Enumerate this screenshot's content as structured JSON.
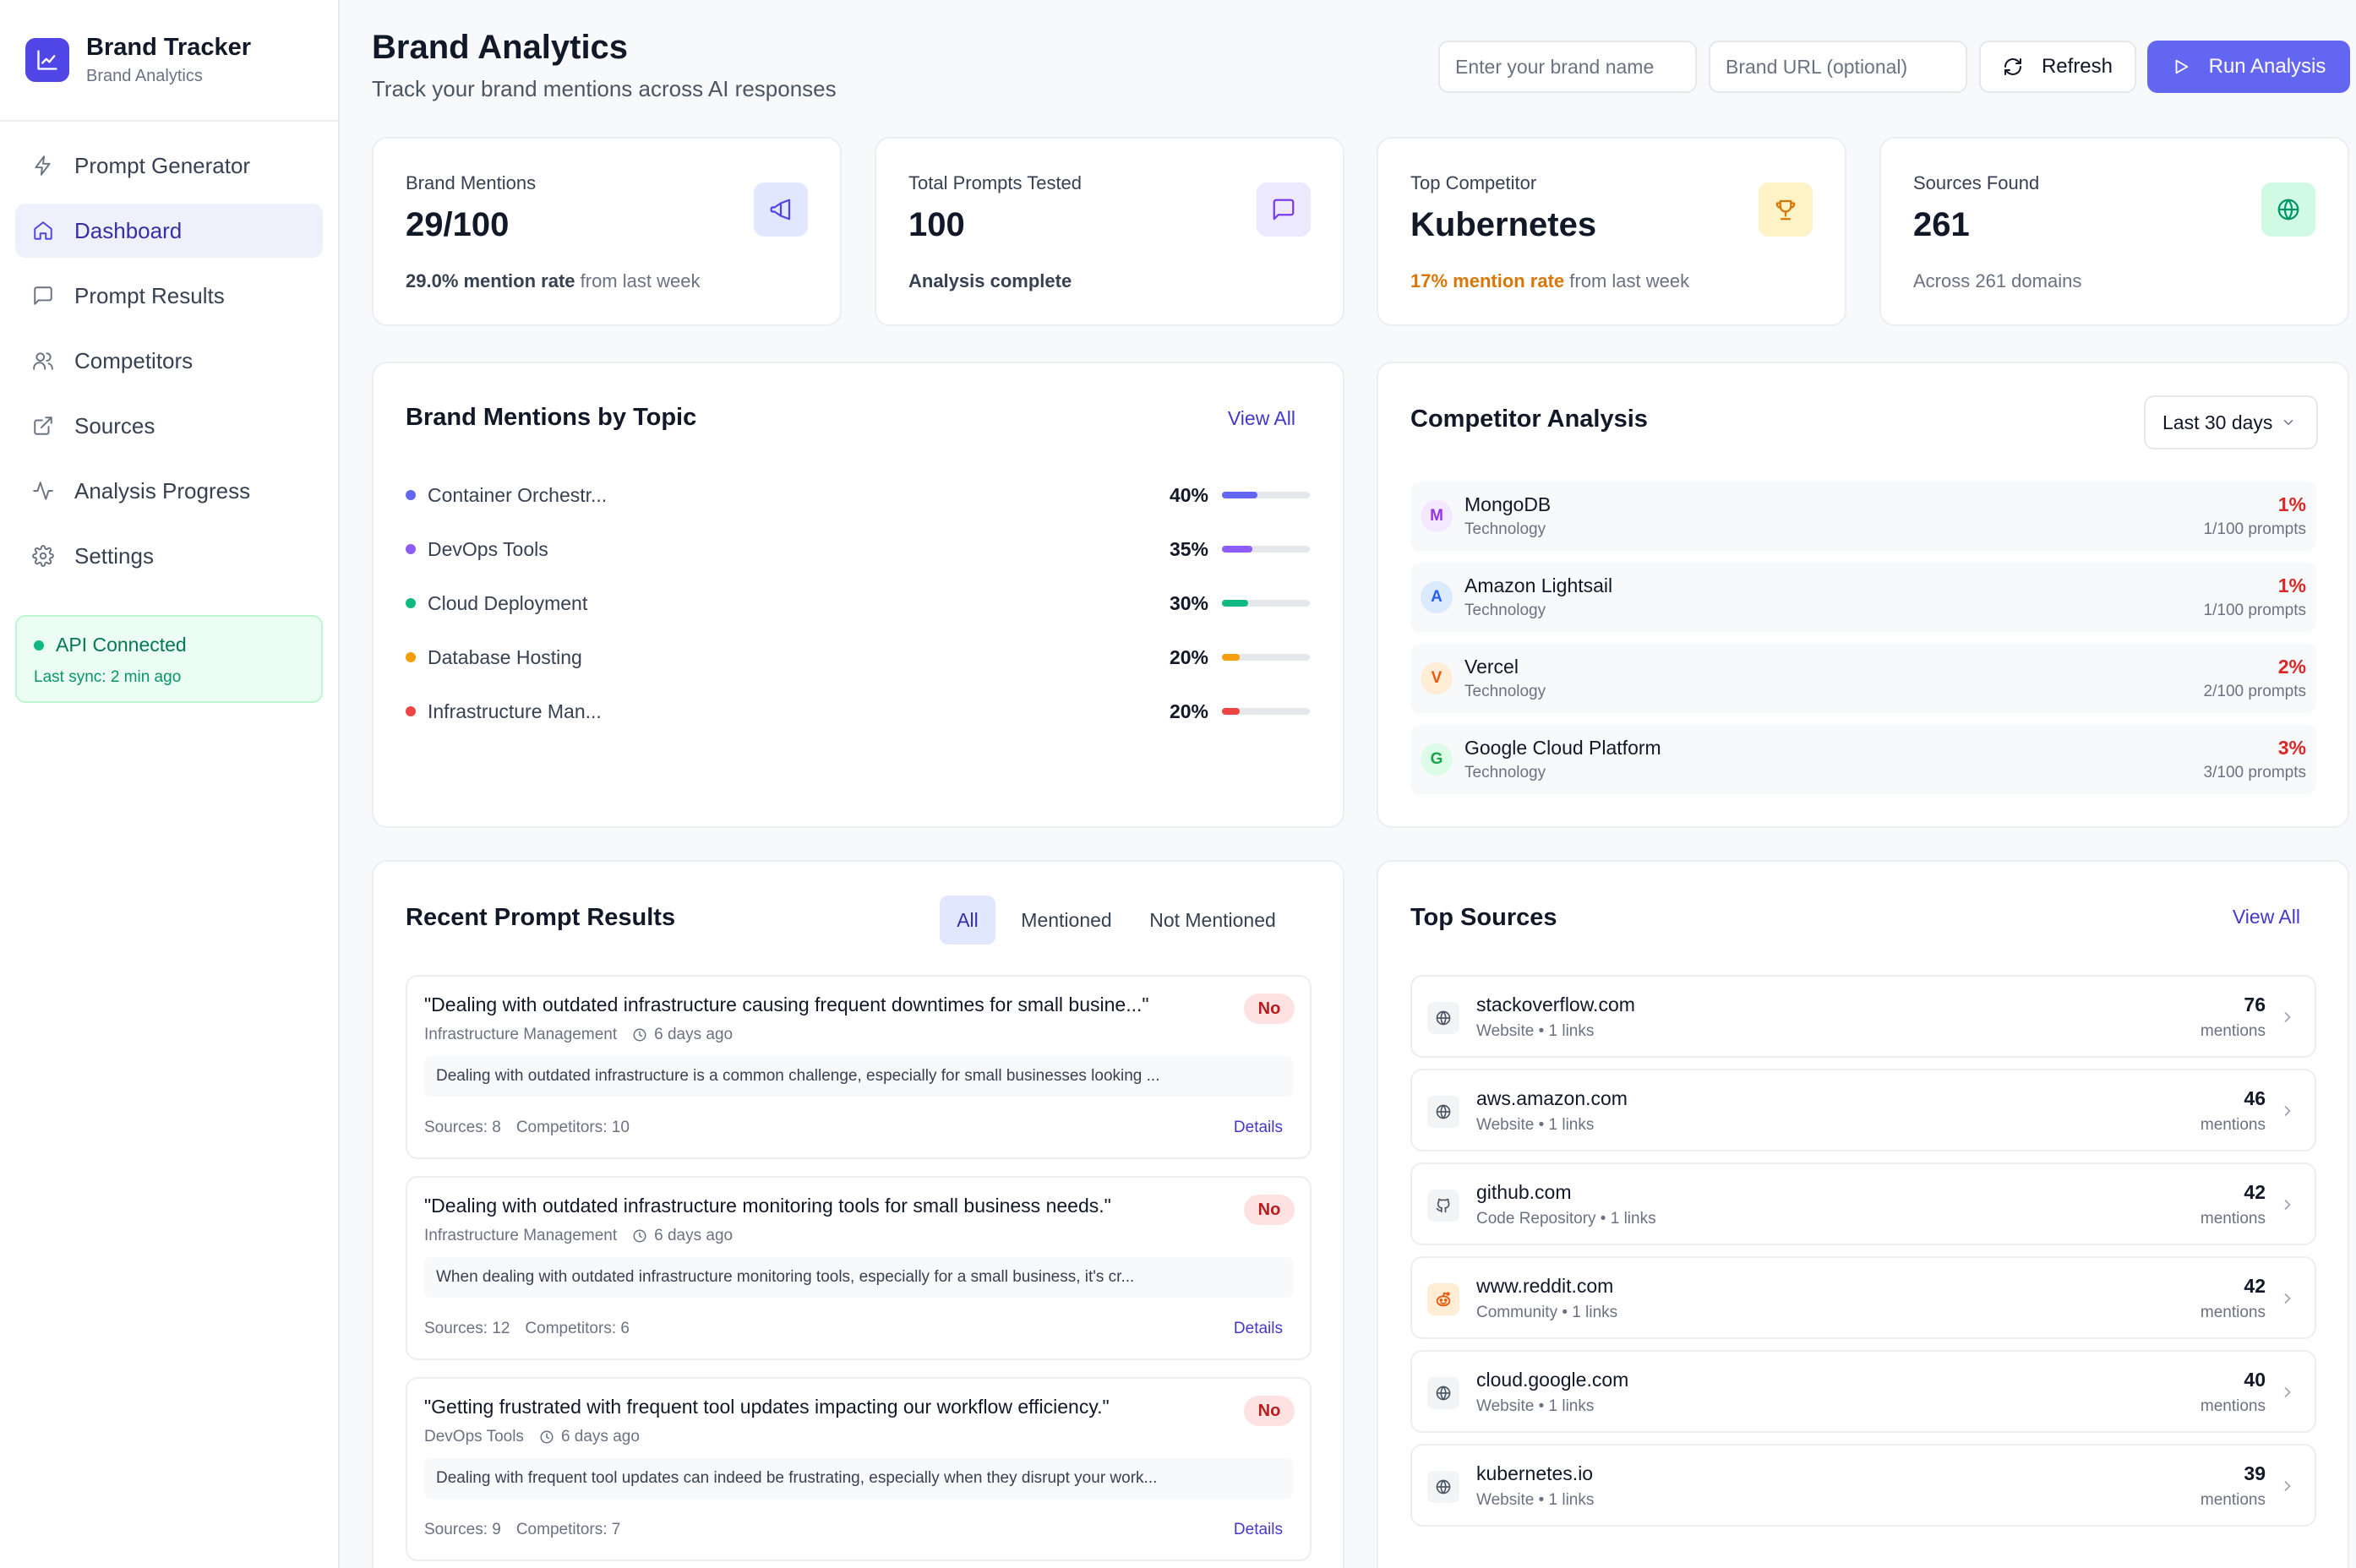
{
  "sidebar": {
    "brand_name": "Brand Tracker",
    "brand_sub": "Brand Analytics",
    "items": [
      {
        "label": "Prompt Generator",
        "icon": "zap-icon"
      },
      {
        "label": "Dashboard",
        "icon": "home-icon",
        "active": true
      },
      {
        "label": "Prompt Results",
        "icon": "message-icon"
      },
      {
        "label": "Competitors",
        "icon": "users-icon"
      },
      {
        "label": "Sources",
        "icon": "external-link-icon"
      },
      {
        "label": "Analysis Progress",
        "icon": "activity-icon"
      },
      {
        "label": "Settings",
        "icon": "gear-icon"
      }
    ],
    "api_status": "API Connected",
    "api_sync": "Last sync: 2 min ago"
  },
  "header": {
    "title": "Brand Analytics",
    "subtitle": "Track your brand mentions across AI responses",
    "brand_placeholder": "Enter your brand name",
    "url_placeholder": "Brand URL (optional)",
    "refresh_label": "Refresh",
    "run_label": "Run Analysis"
  },
  "stats": [
    {
      "label": "Brand Mentions",
      "value": "29/100",
      "foot_strong": "29.0% mention rate",
      "foot_rest": " from last week",
      "icon": "megaphone-icon"
    },
    {
      "label": "Total Prompts Tested",
      "value": "100",
      "foot_strong": "Analysis complete",
      "foot_rest": "",
      "icon": "message-square-icon"
    },
    {
      "label": "Top Competitor",
      "value": "Kubernetes",
      "foot_strong": "17% mention rate",
      "foot_rest": " from last week",
      "icon": "trophy-icon"
    },
    {
      "label": "Sources Found",
      "value": "261",
      "foot_strong": "",
      "foot_rest": "Across 261 domains",
      "icon": "globe-icon"
    }
  ],
  "topics": {
    "title": "Brand Mentions by Topic",
    "view_all": "View All",
    "items": [
      {
        "label": "Container Orchestr...",
        "pct": "40%",
        "value": 40,
        "color": "#6366f1"
      },
      {
        "label": "DevOps Tools",
        "pct": "35%",
        "value": 35,
        "color": "#8b5cf6"
      },
      {
        "label": "Cloud Deployment",
        "pct": "30%",
        "value": 30,
        "color": "#10b981"
      },
      {
        "label": "Database Hosting",
        "pct": "20%",
        "value": 20,
        "color": "#f59e0b"
      },
      {
        "label": "Infrastructure Man...",
        "pct": "20%",
        "value": 20,
        "color": "#ef4444"
      }
    ]
  },
  "competitors": {
    "title": "Competitor Analysis",
    "range": "Last 30 days",
    "items": [
      {
        "initial": "M",
        "name": "MongoDB",
        "category": "Technology",
        "pct": "1%",
        "prompts": "1/100 prompts",
        "bg": "#f3e8ff",
        "fg": "#9333ea"
      },
      {
        "initial": "A",
        "name": "Amazon Lightsail",
        "category": "Technology",
        "pct": "1%",
        "prompts": "1/100 prompts",
        "bg": "#dbeafe",
        "fg": "#2563eb"
      },
      {
        "initial": "V",
        "name": "Vercel",
        "category": "Technology",
        "pct": "2%",
        "prompts": "2/100 prompts",
        "bg": "#ffedd5",
        "fg": "#ea580c"
      },
      {
        "initial": "G",
        "name": "Google Cloud Platform",
        "category": "Technology",
        "pct": "3%",
        "prompts": "3/100 prompts",
        "bg": "#dcfce7",
        "fg": "#16a34a"
      }
    ]
  },
  "results": {
    "title": "Recent Prompt Results",
    "tabs": [
      "All",
      "Mentioned",
      "Not Mentioned"
    ],
    "items": [
      {
        "question": "\"Dealing with outdated infrastructure causing frequent downtimes for small busine...\"",
        "badge": "No",
        "topic": "Infrastructure Management",
        "time": "6 days ago",
        "snippet": "Dealing with outdated infrastructure is a common challenge, especially for small businesses looking ...",
        "sources": "Sources: 8",
        "competitors": "Competitors: 10",
        "details": "Details"
      },
      {
        "question": "\"Dealing with outdated infrastructure monitoring tools for small business needs.\"",
        "badge": "No",
        "topic": "Infrastructure Management",
        "time": "6 days ago",
        "snippet": "When dealing with outdated infrastructure monitoring tools, especially for a small business, it's cr...",
        "sources": "Sources: 12",
        "competitors": "Competitors: 6",
        "details": "Details"
      },
      {
        "question": "\"Getting frustrated with frequent tool updates impacting our workflow efficiency.\"",
        "badge": "No",
        "topic": "DevOps Tools",
        "time": "6 days ago",
        "snippet": "Dealing with frequent tool updates can indeed be frustrating, especially when they disrupt your work...",
        "sources": "Sources: 9",
        "competitors": "Competitors: 7",
        "details": "Details"
      }
    ]
  },
  "sources": {
    "title": "Top Sources",
    "view_all": "View All",
    "items": [
      {
        "name": "stackoverflow.com",
        "type": "Website • 1 links",
        "count": "76",
        "unit": "mentions",
        "icon": "globe-icon"
      },
      {
        "name": "aws.amazon.com",
        "type": "Website • 1 links",
        "count": "46",
        "unit": "mentions",
        "icon": "globe-icon"
      },
      {
        "name": "github.com",
        "type": "Code Repository • 1 links",
        "count": "42",
        "unit": "mentions",
        "icon": "github-icon"
      },
      {
        "name": "www.reddit.com",
        "type": "Community • 1 links",
        "count": "42",
        "unit": "mentions",
        "icon": "reddit-icon"
      },
      {
        "name": "cloud.google.com",
        "type": "Website • 1 links",
        "count": "40",
        "unit": "mentions",
        "icon": "globe-icon"
      },
      {
        "name": "kubernetes.io",
        "type": "Website • 1 links",
        "count": "39",
        "unit": "mentions",
        "icon": "globe-icon"
      }
    ]
  }
}
